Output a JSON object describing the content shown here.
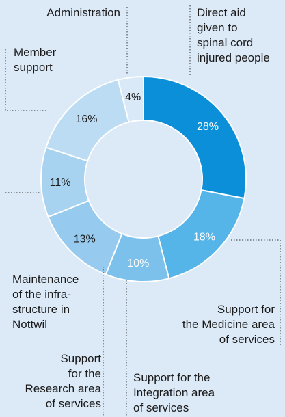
{
  "chart_data": {
    "type": "pie",
    "donut": true,
    "slices": [
      {
        "value": 28,
        "label": "28%",
        "color": "#0a8fd8",
        "text_color": "#ffffff",
        "caption": [
          "Direct aid",
          "given to",
          "spinal cord",
          "injured people"
        ]
      },
      {
        "value": 18,
        "label": "18%",
        "color": "#55b4e8",
        "text_color": "#ffffff",
        "caption": [
          "Support for",
          "the Medicine area",
          "of services"
        ]
      },
      {
        "value": 10,
        "label": "10%",
        "color": "#7cc1ec",
        "text_color": "#ffffff",
        "caption": [
          "Support for the",
          "Integration area",
          "of services"
        ]
      },
      {
        "value": 13,
        "label": "13%",
        "color": "#96cbef",
        "text_color": "#1a1a1a",
        "caption": [
          "Support",
          "for the",
          "Research area",
          "of services"
        ]
      },
      {
        "value": 11,
        "label": "11%",
        "color": "#a7d3f1",
        "text_color": "#1a1a1a",
        "caption": [
          "Maintenance",
          "of the infra-",
          "structure in",
          "Nottwil"
        ]
      },
      {
        "value": 16,
        "label": "16%",
        "color": "#bcdcf4",
        "text_color": "#1a1a1a",
        "caption": [
          "Member",
          "support"
        ]
      },
      {
        "value": 4,
        "label": "4%",
        "color": "#d9e9f8",
        "text_color": "#1a1a1a",
        "caption": [
          "Administration"
        ]
      }
    ]
  }
}
